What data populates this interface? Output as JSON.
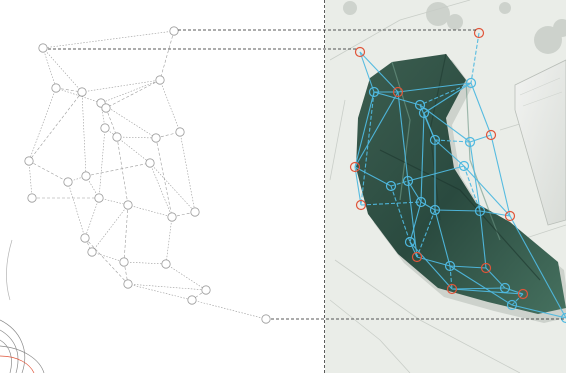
{
  "figure": {
    "colors": {
      "background": "#ffffff",
      "wireframe_gray": "#9b9b9b",
      "node_blue": "#4fb9e0",
      "node_red": "#e0553a",
      "render_green": "#2f5a4a",
      "render_bg": "#e9ece7",
      "leader_line": "#000000"
    },
    "panels": {
      "left": "wireframe-diagram",
      "right": "rendered-site-plan-overlay"
    },
    "divider": "dashed",
    "connector_count": 3
  }
}
